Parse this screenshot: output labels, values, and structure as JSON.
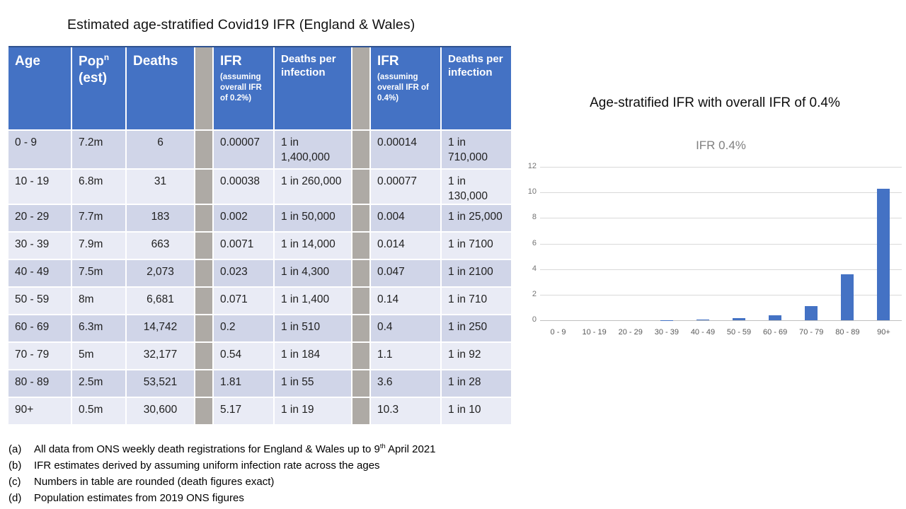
{
  "slide": {
    "title": "Estimated age-stratified Covid19 IFR (England & Wales)"
  },
  "table": {
    "headers": {
      "age": "Age",
      "pop_base": "Pop",
      "pop_sup": "n",
      "pop_line2": "(est)",
      "deaths": "Deaths",
      "ifr02_main": "IFR",
      "ifr02_sub": "(assuming overall IFR of 0.2%)",
      "dpi02": "Deaths per infection",
      "ifr04_main": "IFR",
      "ifr04_sub": "(assuming overall IFR of 0.4%)",
      "dpi04": "Deaths per infection"
    },
    "rows": [
      {
        "age": "0 - 9",
        "pop": "7.2m",
        "deaths": "6",
        "ifr02": "0.00007",
        "dpi02": "1 in 1,400,000",
        "ifr04": "0.00014",
        "dpi04": "1 in 710,000"
      },
      {
        "age": "10 - 19",
        "pop": "6.8m",
        "deaths": "31",
        "ifr02": "0.00038",
        "dpi02": "1 in 260,000",
        "ifr04": "0.00077",
        "dpi04": "1 in 130,000"
      },
      {
        "age": "20 - 29",
        "pop": "7.7m",
        "deaths": "183",
        "ifr02": "0.002",
        "dpi02": "1 in 50,000",
        "ifr04": "0.004",
        "dpi04": "1 in 25,000"
      },
      {
        "age": "30 - 39",
        "pop": "7.9m",
        "deaths": "663",
        "ifr02": "0.0071",
        "dpi02": "1 in 14,000",
        "ifr04": "0.014",
        "dpi04": "1 in 7100"
      },
      {
        "age": "40 - 49",
        "pop": "7.5m",
        "deaths": "2,073",
        "ifr02": "0.023",
        "dpi02": "1 in 4,300",
        "ifr04": "0.047",
        "dpi04": "1 in 2100"
      },
      {
        "age": "50 - 59",
        "pop": "8m",
        "deaths": "6,681",
        "ifr02": "0.071",
        "dpi02": "1 in 1,400",
        "ifr04": "0.14",
        "dpi04": "1 in 710"
      },
      {
        "age": "60 - 69",
        "pop": "6.3m",
        "deaths": "14,742",
        "ifr02": "0.2",
        "dpi02": "1 in 510",
        "ifr04": "0.4",
        "dpi04": "1 in 250"
      },
      {
        "age": "70 - 79",
        "pop": "5m",
        "deaths": "32,177",
        "ifr02": "0.54",
        "dpi02": "1 in 184",
        "ifr04": "1.1",
        "dpi04": "1 in 92"
      },
      {
        "age": "80 - 89",
        "pop": "2.5m",
        "deaths": "53,521",
        "ifr02": "1.81",
        "dpi02": "1 in 55",
        "ifr04": "3.6",
        "dpi04": "1 in 28"
      },
      {
        "age": "90+",
        "pop": "0.5m",
        "deaths": "30,600",
        "ifr02": "5.17",
        "dpi02": "1 in 19",
        "ifr04": "10.3",
        "dpi04": "1 in 10"
      }
    ]
  },
  "footnotes": [
    {
      "label": "(a)",
      "text": "All data from ONS weekly death registrations for England & Wales up to 9",
      "sup": "th",
      "text_after": " April 2021"
    },
    {
      "label": "(b)",
      "text": "IFR estimates derived by assuming uniform infection rate across the ages",
      "sup": "",
      "text_after": ""
    },
    {
      "label": "(c)",
      "text": "Numbers in table are rounded (death figures exact)",
      "sup": "",
      "text_after": ""
    },
    {
      "label": "(d)",
      "text": "Population estimates from 2019 ONS figures",
      "sup": "",
      "text_after": ""
    }
  ],
  "chart": {
    "heading": "Age-stratified IFR with overall IFR of 0.4%"
  },
  "chart_data": {
    "type": "bar",
    "title": "IFR 0.4%",
    "categories": [
      "0 - 9",
      "10 - 19",
      "20 - 29",
      "30 - 39",
      "40 - 49",
      "50 - 59",
      "60 - 69",
      "70 - 79",
      "80 - 89",
      "90+"
    ],
    "values": [
      0.00014,
      0.00077,
      0.004,
      0.014,
      0.047,
      0.14,
      0.4,
      1.1,
      3.6,
      10.3
    ],
    "xlabel": "",
    "ylabel": "",
    "ylim": [
      0,
      12
    ],
    "yticks": [
      0,
      2,
      4,
      6,
      8,
      10,
      12
    ],
    "grid": "horizontal",
    "legend": "none"
  },
  "colors": {
    "header_blue": "#4472C4",
    "band_dark": "#D0D5E8",
    "band_light": "#E9EBF5",
    "sep_gray": "#AEAAA5",
    "border_navy": "#2F528F",
    "bar_blue": "#4472C4",
    "gridline": "#D9D9D9",
    "axis_line": "#BFBFBF",
    "ytick_text": "#737373",
    "xtick_text": "#595959",
    "subtitle_gray": "#808080"
  }
}
